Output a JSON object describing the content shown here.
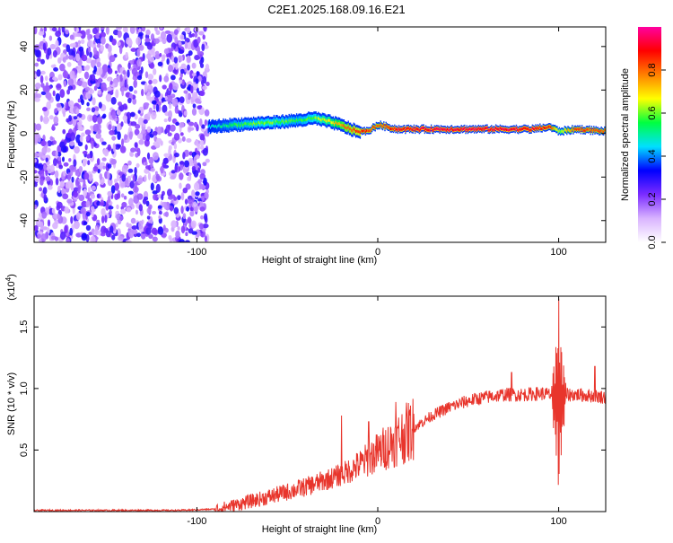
{
  "title": "C2E1.2025.168.09.16.E21",
  "chart_data": [
    {
      "type": "heatmap",
      "xlabel": "Height of straight line (km)",
      "ylabel": "Frequency (Hz)",
      "xlim": [
        -190,
        126
      ],
      "ylim": [
        -50,
        49
      ],
      "x_ticks": [
        -100,
        0,
        100
      ],
      "x_tick_labels": [
        "-100",
        "0",
        "100"
      ],
      "y_ticks": [
        -40,
        -20,
        0,
        20,
        40
      ],
      "y_tick_labels": [
        "-40",
        "-20",
        "0",
        "20",
        "40"
      ],
      "noise_region_end_km": -94,
      "colorbar": {
        "label": "Normalized spectral amplitude",
        "range": [
          0,
          1
        ],
        "ticks": [
          0.0,
          0.2,
          0.4,
          0.6,
          0.8
        ],
        "tick_labels": [
          "0.0",
          "0.2",
          "0.4",
          "0.6",
          "0.8"
        ],
        "colors": [
          "#ffffff",
          "#d9b3ff",
          "#7b2cff",
          "#0000ff",
          "#00e0ff",
          "#00ff40",
          "#ffff00",
          "#ff8000",
          "#ff0000",
          "#ff00a0"
        ]
      },
      "signal_track": {
        "x": [
          -94,
          -80,
          -60,
          -45,
          -35,
          -25,
          -18,
          -12,
          -6,
          0,
          10,
          30,
          50,
          70,
          85,
          95,
          100,
          110,
          126
        ],
        "y": [
          3,
          4,
          5,
          6,
          7,
          5,
          3,
          1,
          1,
          4,
          2,
          2,
          2,
          2,
          2,
          3,
          1,
          2,
          1
        ],
        "amplitude": [
          0.45,
          0.55,
          0.6,
          0.55,
          0.6,
          0.7,
          0.8,
          0.85,
          0.85,
          0.8,
          0.9,
          0.92,
          0.92,
          0.92,
          0.9,
          0.85,
          0.6,
          0.85,
          0.8
        ]
      }
    },
    {
      "type": "line",
      "xlabel": "Height of straight line (km)",
      "ylabel": "SNR (10 * v/v)",
      "y_multiplier": "(x10",
      "y_multiplier_exp": "4",
      "y_multiplier_close": ")",
      "xlim": [
        -190,
        126
      ],
      "ylim": [
        0,
        1.75
      ],
      "x_ticks": [
        -100,
        0,
        100
      ],
      "x_tick_labels": [
        "-100",
        "0",
        "100"
      ],
      "y_ticks": [
        0.5,
        1.0,
        1.5
      ],
      "y_tick_labels": [
        "0.5",
        "1.0",
        "1.5"
      ],
      "color": "#e8352c",
      "envelope_x": [
        -190,
        -110,
        -90,
        -80,
        -60,
        -40,
        -20,
        -10,
        0,
        10,
        20,
        30,
        40,
        50,
        60,
        70,
        80,
        90,
        95,
        100,
        105,
        110,
        126
      ],
      "envelope_y": [
        0.01,
        0.01,
        0.02,
        0.05,
        0.12,
        0.2,
        0.3,
        0.38,
        0.48,
        0.58,
        0.68,
        0.78,
        0.85,
        0.9,
        0.93,
        0.95,
        0.95,
        0.96,
        0.95,
        0.9,
        0.95,
        0.95,
        0.93
      ],
      "peaks": [
        {
          "x": -20,
          "y": 0.78
        },
        {
          "x": -5,
          "y": 0.73
        },
        {
          "x": 10,
          "y": 0.89
        },
        {
          "x": 74,
          "y": 1.13
        },
        {
          "x": 100,
          "y": 1.73
        },
        {
          "x": 120,
          "y": 1.18
        }
      ]
    }
  ]
}
